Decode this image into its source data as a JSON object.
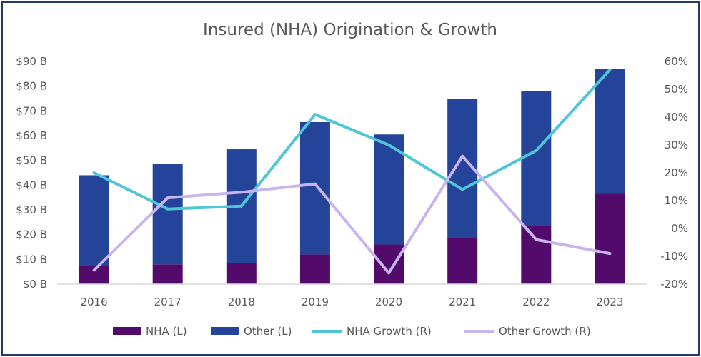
{
  "chart_data": {
    "type": "bar",
    "title": "Insured (NHA) Origination & Growth",
    "categories": [
      "2016",
      "2017",
      "2018",
      "2019",
      "2020",
      "2021",
      "2022",
      "2023"
    ],
    "stacked": true,
    "series": [
      {
        "name": "NHA (L)",
        "kind": "bar",
        "axis": "left",
        "color": "#520a6b",
        "values": [
          7.5,
          8,
          8.5,
          12,
          16,
          18.5,
          23.5,
          36.5
        ]
      },
      {
        "name": "Other (L)",
        "kind": "bar",
        "axis": "left",
        "color": "#24449a",
        "values": [
          36.5,
          40.5,
          46,
          53.5,
          44.5,
          56.5,
          54.5,
          50.5
        ]
      },
      {
        "name": "NHA Growth (R)",
        "kind": "line",
        "axis": "right",
        "color": "#4fc6d8",
        "values": [
          20,
          7,
          8,
          41,
          30,
          14,
          28,
          57
        ]
      },
      {
        "name": "Other Growth (R)",
        "kind": "line",
        "axis": "right",
        "color": "#c9b4f0",
        "values": [
          -15,
          11,
          13,
          16,
          -16,
          26,
          -4,
          -9
        ]
      }
    ],
    "left_axis": {
      "min": 0,
      "max": 90,
      "step": 10,
      "tick_labels": [
        "$0 B",
        "$10 B",
        "$20 B",
        "$30 B",
        "$40 B",
        "$50 B",
        "$60 B",
        "$70 B",
        "$80 B",
        "$90 B"
      ]
    },
    "right_axis": {
      "min": -20,
      "max": 60,
      "step": 10,
      "tick_labels": [
        "-20%",
        "-10%",
        "0%",
        "10%",
        "20%",
        "30%",
        "40%",
        "50%",
        "60%"
      ]
    },
    "grid": false,
    "legend_position": "bottom"
  },
  "colors": {
    "border": "#1f3d6b",
    "text": "#595959",
    "axis": "#d9d9d9"
  }
}
